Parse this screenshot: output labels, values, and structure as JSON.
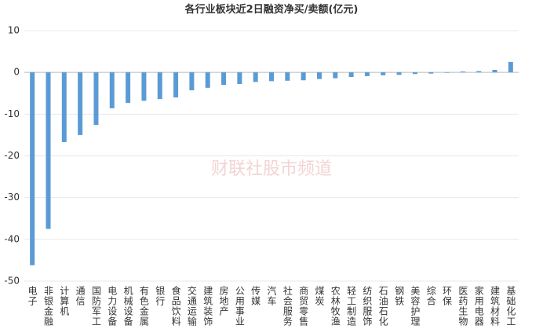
{
  "chart_data": {
    "type": "bar",
    "title": "各行业板块近2日融资净买/卖额(亿元)",
    "watermark": "财联社股市频道",
    "categories": [
      "电子",
      "非银金融",
      "计算机",
      "通信",
      "国防军工",
      "电力设备",
      "机械设备",
      "有色金属",
      "银行",
      "食品饮料",
      "交通运输",
      "建筑装饰",
      "房地产",
      "公用事业",
      "传媒",
      "汽车",
      "社会服务",
      "商贸零售",
      "煤炭",
      "农林牧渔",
      "轻工制造",
      "纺织服饰",
      "石油石化",
      "钢铁",
      "美容护理",
      "综合",
      "环保",
      "医药生物",
      "家用电器",
      "建筑材料",
      "基础化工"
    ],
    "values": [
      -46.2,
      -37.5,
      -16.7,
      -15.0,
      -12.6,
      -8.6,
      -7.3,
      -6.8,
      -6.4,
      -6.0,
      -4.3,
      -3.7,
      -3.0,
      -2.8,
      -2.3,
      -2.1,
      -2.0,
      -1.9,
      -1.6,
      -1.4,
      -1.1,
      -0.9,
      -0.7,
      -0.6,
      -0.4,
      -0.3,
      -0.1,
      0.2,
      0.3,
      0.6,
      2.5
    ],
    "color": "#5b9bd5",
    "ylim": [
      -50,
      10
    ],
    "yticks": [
      -50,
      -40,
      -30,
      -20,
      -10,
      0,
      10
    ],
    "grid": true
  }
}
